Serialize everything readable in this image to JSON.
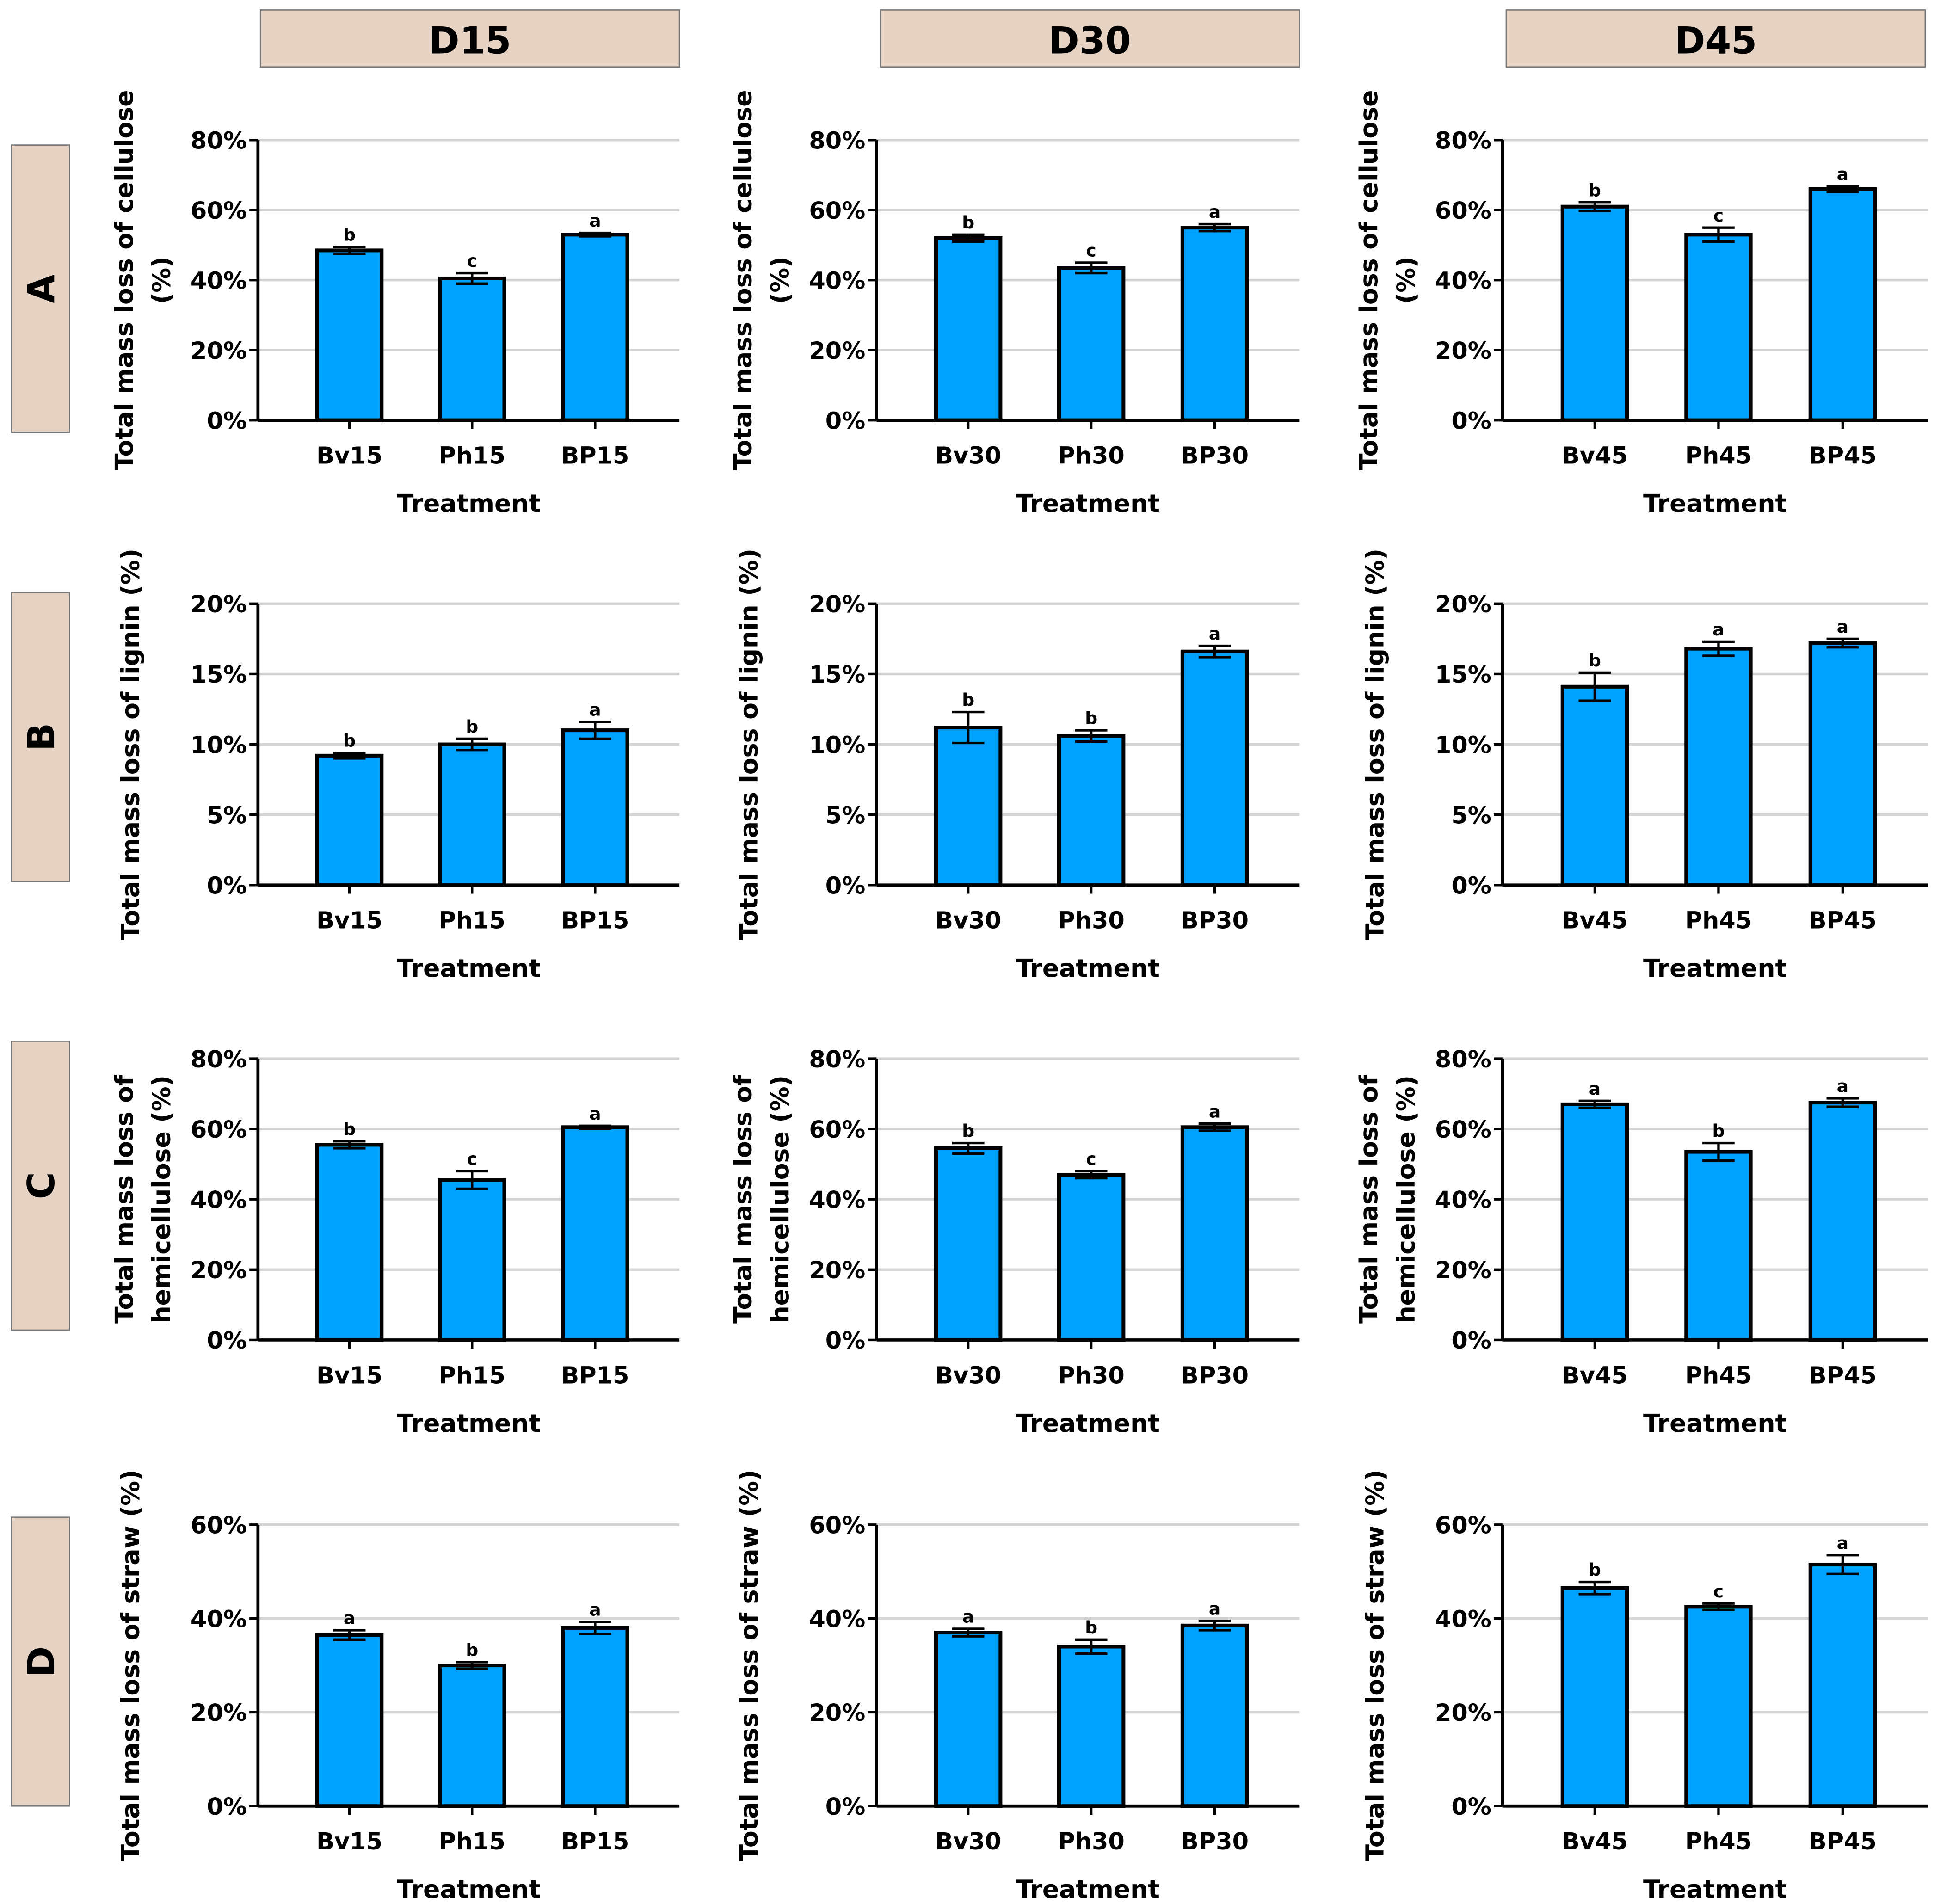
{
  "colors": {
    "bar": "#00A2FF",
    "label_box": "#E6D3C4",
    "grid": "#D3D3D3"
  },
  "column_headers": [
    "D15",
    "D30",
    "D45"
  ],
  "row_labels": [
    "A",
    "B",
    "C",
    "D"
  ],
  "chart_data": [
    {
      "type": "bar",
      "row": "A",
      "col": "D15",
      "ylabel": [
        "Total mass loss of cellulose",
        "(%)"
      ],
      "xlabel": "Treatment",
      "ylim": [
        0,
        80
      ],
      "yticks": [
        0,
        20,
        40,
        60,
        80
      ],
      "categories": [
        "Bv15",
        "Ph15",
        "BP15"
      ],
      "values": [
        48.5,
        40.5,
        53
      ],
      "errors": [
        1,
        1.5,
        0.5
      ],
      "letters": [
        "b",
        "c",
        "a"
      ]
    },
    {
      "type": "bar",
      "row": "A",
      "col": "D30",
      "ylabel": [
        "Total mass loss of cellulose",
        "(%)"
      ],
      "xlabel": "Treatment",
      "ylim": [
        0,
        80
      ],
      "yticks": [
        0,
        20,
        40,
        60,
        80
      ],
      "categories": [
        "Bv30",
        "Ph30",
        "BP30"
      ],
      "values": [
        52,
        43.5,
        55
      ],
      "errors": [
        1,
        1.5,
        1
      ],
      "letters": [
        "b",
        "c",
        "a"
      ]
    },
    {
      "type": "bar",
      "row": "A",
      "col": "D45",
      "ylabel": [
        "Total mass loss of cellulose",
        "(%)"
      ],
      "xlabel": "Treatment",
      "ylim": [
        0,
        80
      ],
      "yticks": [
        0,
        20,
        40,
        60,
        80
      ],
      "categories": [
        "Bv45",
        "Ph45",
        "BP45"
      ],
      "values": [
        61,
        53,
        66
      ],
      "errors": [
        1.2,
        2,
        0.8
      ],
      "letters": [
        "b",
        "c",
        "a"
      ]
    },
    {
      "type": "bar",
      "row": "B",
      "col": "D15",
      "ylabel": [
        "Total mass loss of lignin (%)"
      ],
      "xlabel": "Treatment",
      "ylim": [
        0,
        20
      ],
      "yticks": [
        0,
        5,
        10,
        15,
        20
      ],
      "categories": [
        "Bv15",
        "Ph15",
        "BP15"
      ],
      "values": [
        9.2,
        10,
        11
      ],
      "errors": [
        0.2,
        0.4,
        0.6
      ],
      "letters": [
        "b",
        "b",
        "a"
      ]
    },
    {
      "type": "bar",
      "row": "B",
      "col": "D30",
      "ylabel": [
        "Total mass loss of lignin (%)"
      ],
      "xlabel": "Treatment",
      "ylim": [
        0,
        20
      ],
      "yticks": [
        0,
        5,
        10,
        15,
        20
      ],
      "categories": [
        "Bv30",
        "Ph30",
        "BP30"
      ],
      "values": [
        11.2,
        10.6,
        16.6
      ],
      "errors": [
        1.1,
        0.4,
        0.4
      ],
      "letters": [
        "b",
        "b",
        "a"
      ]
    },
    {
      "type": "bar",
      "row": "B",
      "col": "D45",
      "ylabel": [
        "Total mass loss of lignin (%)"
      ],
      "xlabel": "Treatment",
      "ylim": [
        0,
        20
      ],
      "yticks": [
        0,
        5,
        10,
        15,
        20
      ],
      "categories": [
        "Bv45",
        "Ph45",
        "BP45"
      ],
      "values": [
        14.1,
        16.8,
        17.2
      ],
      "errors": [
        1,
        0.5,
        0.3
      ],
      "letters": [
        "b",
        "a",
        "a"
      ]
    },
    {
      "type": "bar",
      "row": "C",
      "col": "D15",
      "ylabel": [
        "Total mass loss of",
        "hemicellulose (%)"
      ],
      "xlabel": "Treatment",
      "ylim": [
        0,
        80
      ],
      "yticks": [
        0,
        20,
        40,
        60,
        80
      ],
      "categories": [
        "Bv15",
        "Ph15",
        "BP15"
      ],
      "values": [
        55.5,
        45.5,
        60.5
      ],
      "errors": [
        1,
        2.5,
        0.4
      ],
      "letters": [
        "b",
        "c",
        "a"
      ]
    },
    {
      "type": "bar",
      "row": "C",
      "col": "D30",
      "ylabel": [
        "Total mass loss of",
        "hemicellulose (%)"
      ],
      "xlabel": "Treatment",
      "ylim": [
        0,
        80
      ],
      "yticks": [
        0,
        20,
        40,
        60,
        80
      ],
      "categories": [
        "Bv30",
        "Ph30",
        "BP30"
      ],
      "values": [
        54.5,
        47,
        60.5
      ],
      "errors": [
        1.5,
        1,
        1
      ],
      "letters": [
        "b",
        "c",
        "a"
      ]
    },
    {
      "type": "bar",
      "row": "C",
      "col": "D45",
      "ylabel": [
        "Total mass loss of",
        "hemicellulose (%)"
      ],
      "xlabel": "Treatment",
      "ylim": [
        0,
        80
      ],
      "yticks": [
        0,
        20,
        40,
        60,
        80
      ],
      "categories": [
        "Bv45",
        "Ph45",
        "BP45"
      ],
      "values": [
        67,
        53.5,
        67.5
      ],
      "errors": [
        1,
        2.5,
        1.2
      ],
      "letters": [
        "a",
        "b",
        "a"
      ]
    },
    {
      "type": "bar",
      "row": "D",
      "col": "D15",
      "ylabel": [
        "Total mass loss of straw (%)"
      ],
      "xlabel": "Treatment",
      "ylim": [
        0,
        60
      ],
      "yticks": [
        0,
        20,
        40,
        60
      ],
      "categories": [
        "Bv15",
        "Ph15",
        "BP15"
      ],
      "values": [
        36.5,
        30,
        38
      ],
      "errors": [
        1,
        0.7,
        1.3
      ],
      "letters": [
        "a",
        "b",
        "a"
      ]
    },
    {
      "type": "bar",
      "row": "D",
      "col": "D30",
      "ylabel": [
        "Total mass loss of straw (%)"
      ],
      "xlabel": "Treatment",
      "ylim": [
        0,
        60
      ],
      "yticks": [
        0,
        20,
        40,
        60
      ],
      "categories": [
        "Bv30",
        "Ph30",
        "BP30"
      ],
      "values": [
        37,
        34,
        38.5
      ],
      "errors": [
        0.8,
        1.5,
        1
      ],
      "letters": [
        "a",
        "b",
        "a"
      ]
    },
    {
      "type": "bar",
      "row": "D",
      "col": "D45",
      "ylabel": [
        "Total mass loss of straw (%)"
      ],
      "xlabel": "Treatment",
      "ylim": [
        0,
        60
      ],
      "yticks": [
        0,
        20,
        40,
        60
      ],
      "categories": [
        "Bv45",
        "Ph45",
        "BP45"
      ],
      "values": [
        46.5,
        42.5,
        51.5
      ],
      "errors": [
        1.3,
        0.7,
        2
      ],
      "letters": [
        "b",
        "c",
        "a"
      ]
    }
  ]
}
